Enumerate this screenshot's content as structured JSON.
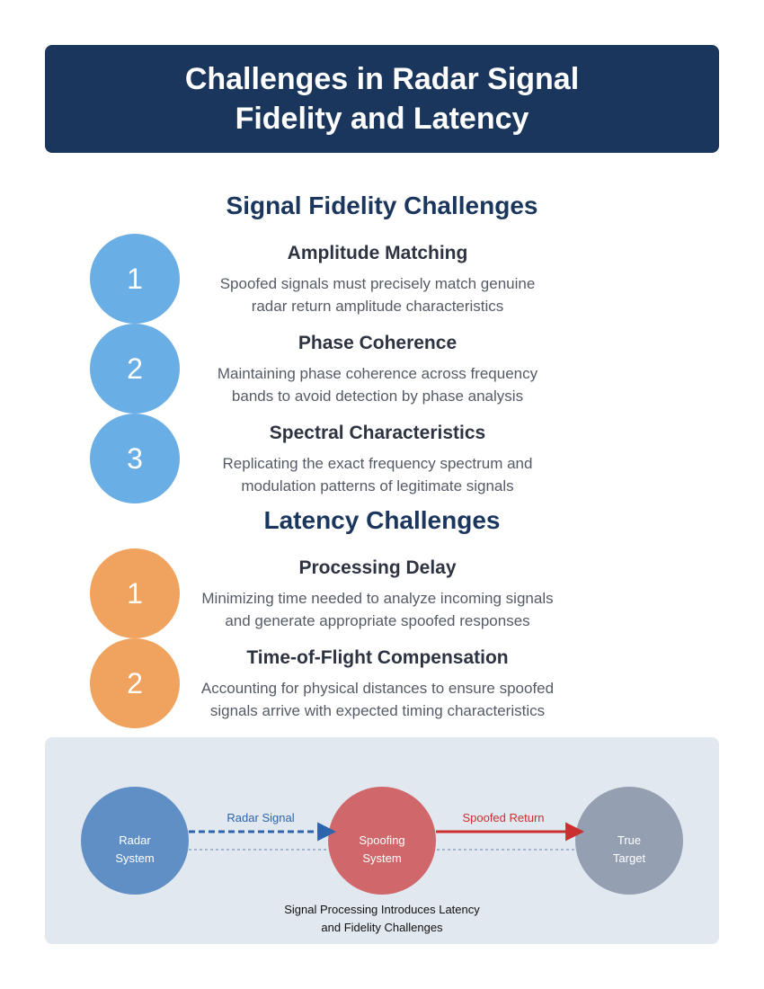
{
  "title": "Challenges in Radar Signal Fidelity and Latency",
  "colors": {
    "banner": "#1b365d",
    "fidelity_circle": "#6aaee6",
    "latency_circle": "#f0a35e",
    "radar_node": "#5f8fc5",
    "spoof_node": "#d0686b",
    "target_node": "#94a0b2",
    "radar_arrow": "#2d64ad",
    "spoof_arrow": "#cc2f2f"
  },
  "fidelity": {
    "heading": "Signal Fidelity Challenges",
    "items": [
      {
        "number": "1",
        "title": "Amplitude Matching",
        "desc_line1": "Spoofed signals must precisely match genuine",
        "desc_line2": "radar return amplitude characteristics"
      },
      {
        "number": "2",
        "title": "Phase Coherence",
        "desc_line1": "Maintaining phase coherence across frequency",
        "desc_line2": "bands to avoid detection by phase analysis"
      },
      {
        "number": "3",
        "title": "Spectral Characteristics",
        "desc_line1": "Replicating the exact frequency spectrum and",
        "desc_line2": "modulation patterns of legitimate signals"
      }
    ]
  },
  "latency": {
    "heading": "Latency Challenges",
    "items": [
      {
        "number": "1",
        "title": "Processing Delay",
        "desc_line1": "Minimizing time needed to analyze incoming signals",
        "desc_line2": "and generate appropriate spoofed responses"
      },
      {
        "number": "2",
        "title": "Time-of-Flight Compensation",
        "desc_line1": "Accounting for physical distances to ensure spoofed",
        "desc_line2": "signals arrive with expected timing characteristics"
      }
    ]
  },
  "diagram": {
    "nodes": {
      "radar": {
        "line1": "Radar",
        "line2": "System"
      },
      "spoof": {
        "line1": "Spoofing",
        "line2": "System"
      },
      "target": {
        "line1": "True",
        "line2": "Target"
      }
    },
    "edges": {
      "radar_signal": "Radar Signal",
      "spoofed_return": "Spoofed Return"
    },
    "caption_line1": "Signal Processing Introduces Latency",
    "caption_line2": "and Fidelity Challenges"
  }
}
